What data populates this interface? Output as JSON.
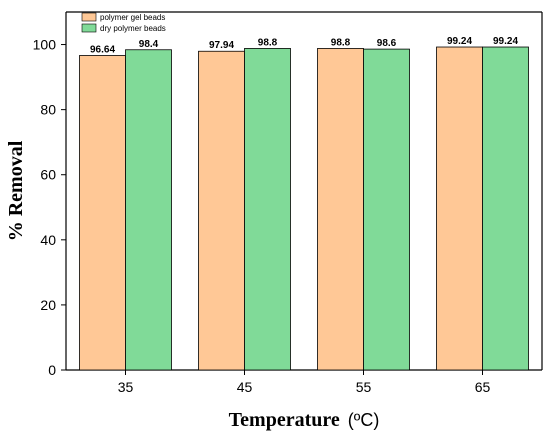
{
  "chart_data": {
    "type": "bar",
    "categories": [
      "35",
      "45",
      "55",
      "65"
    ],
    "series": [
      {
        "name": "polymer gel beads",
        "color": "#FFC896",
        "values": [
          96.64,
          97.94,
          98.8,
          99.24
        ],
        "labels": [
          "96.64",
          "97.94",
          "98.8",
          "99.24"
        ]
      },
      {
        "name": "dry polymer beads",
        "color": "#80DA98",
        "values": [
          98.4,
          98.8,
          98.6,
          99.24
        ],
        "labels": [
          "98.4",
          "98.8",
          "98.6",
          "99.24"
        ]
      }
    ],
    "ylabel": "% Removal",
    "xlabel": "Temperature",
    "xlabel_unit": "(ºC)",
    "ylim": [
      0,
      110
    ],
    "yticks": [
      "0",
      "20",
      "40",
      "60",
      "80",
      "100"
    ],
    "legend_position": "top-left",
    "grid": false
  }
}
